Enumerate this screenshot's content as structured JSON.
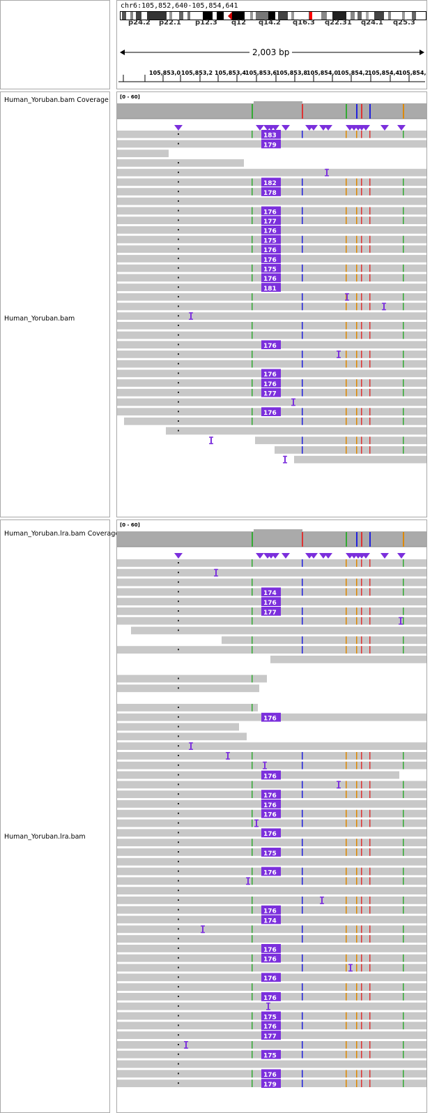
{
  "locus": "chr6:105,852,640-105,854,641",
  "ideogram_bands": [
    "p24.2",
    "p22.1",
    "p12.3",
    "q12",
    "q14.2",
    "q16.3",
    "q22.31",
    "q24.1",
    "q25.3"
  ],
  "span": "2,003 bp",
  "ruler_ticks": [
    "105,853,0",
    "105,853,2",
    "105,853,4",
    "105,853,6",
    "105,853,8",
    "105,854,0",
    "105,854,2",
    "105,854,4",
    "105,854,6"
  ],
  "tracks": {
    "coverage1": "Human_Yoruban.bam Coverage",
    "alignments1": "Human_Yoruban.bam",
    "coverage2": "Human_Yoruban.lra.bam Coverage",
    "alignments2": "Human_Yoruban.lra.bam",
    "coverage_range": "[0 - 60]"
  },
  "insertion_labels_1": [
    "183",
    "179",
    "182",
    "178",
    "176",
    "177",
    "176",
    "175",
    "176",
    "176",
    "175",
    "176",
    "181",
    "176",
    "176",
    "176",
    "177",
    "176"
  ],
  "insertion_labels_2": [
    "174",
    "176",
    "177",
    "176",
    "176",
    "176",
    "176",
    "176",
    "176",
    "175",
    "176",
    "176",
    "174",
    "176",
    "176",
    "176",
    "176",
    "175",
    "176",
    "177",
    "175",
    "176",
    "179"
  ],
  "colors": {
    "read": "#c8c8c8",
    "coverage": "#aaaaaa",
    "insertion": "#7b2fdc",
    "mismatch_red": "#d33",
    "mismatch_green": "#3a3",
    "mismatch_blue": "#22d",
    "mismatch_orange": "#d80"
  }
}
